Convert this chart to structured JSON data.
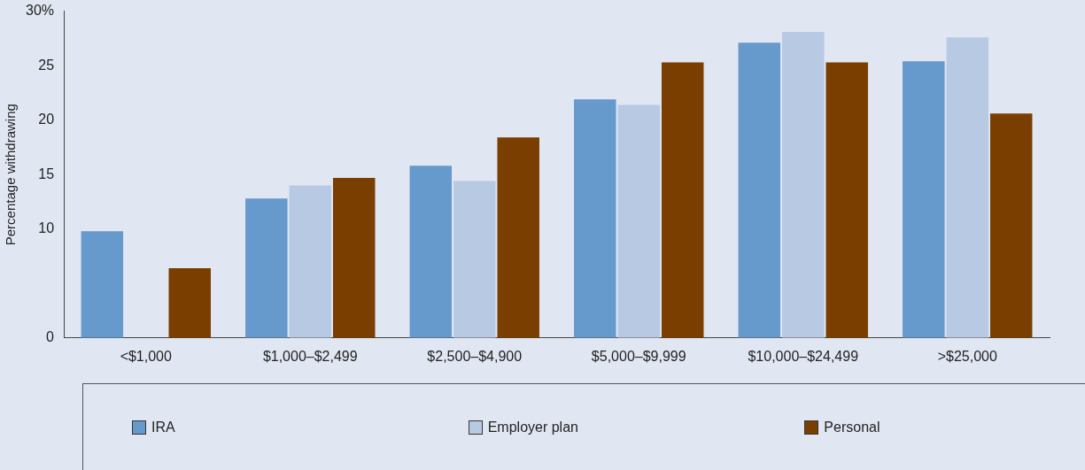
{
  "chart_data": {
    "type": "bar",
    "ylabel": "Percentage withdrawing",
    "categories": [
      "<$1,000",
      "$1,000–$2,499",
      "$2,500–$4,900",
      "$5,000–$9,999",
      "$10,000–$24,499",
      ">$25,000"
    ],
    "series": [
      {
        "name": "IRA",
        "color": "#6699cc",
        "values": [
          9.8,
          12.8,
          15.8,
          21.9,
          27.1,
          25.4
        ]
      },
      {
        "name": "Employer plan",
        "color": "#b8c9e4",
        "values": [
          null,
          14.0,
          14.4,
          21.4,
          28.1,
          27.6
        ]
      },
      {
        "name": "Personal",
        "color": "#7a3f00",
        "values": [
          6.4,
          14.7,
          18.4,
          25.3,
          25.3,
          20.6
        ]
      }
    ],
    "ylim": [
      0,
      30
    ],
    "yticks": [
      0,
      10,
      15,
      20,
      25,
      {
        "value": 30,
        "label": "30%"
      }
    ],
    "grid": false,
    "legend": "bottom"
  }
}
